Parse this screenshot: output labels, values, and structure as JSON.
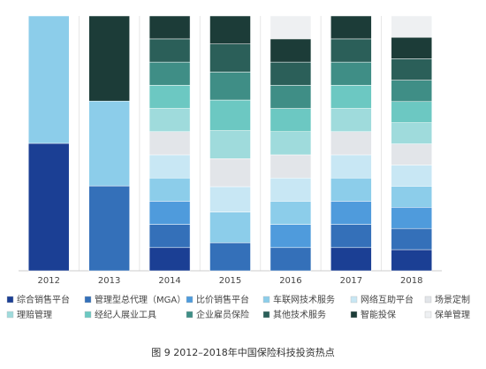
{
  "chart_data": {
    "type": "stacked_bar",
    "caption": "图 9  2012–2018年中国保险科技投资热点",
    "categories": [
      "2012",
      "2013",
      "2014",
      "2015",
      "2016",
      "2017",
      "2018"
    ],
    "ylim": [
      0,
      100
    ],
    "series": [
      {
        "name": "综合销售平台",
        "color": "#1b3f94",
        "values": [
          50,
          null,
          9.1,
          null,
          null,
          9.1,
          8.3
        ]
      },
      {
        "name": "管理型总代理（MGA）",
        "color": "#3470b9",
        "values": [
          null,
          33.3,
          9.1,
          11,
          9.1,
          9.1,
          8.3
        ]
      },
      {
        "name": "比价销售平台",
        "color": "#4f9bdc",
        "values": [
          null,
          null,
          9.1,
          null,
          9.1,
          9.1,
          8.3
        ]
      },
      {
        "name": "车联网技术服务",
        "color": "#8ccdea",
        "values": [
          50,
          33.3,
          9.1,
          12,
          9.1,
          9.1,
          8.3
        ]
      },
      {
        "name": "网络互助平台",
        "color": "#c8e7f4",
        "values": [
          null,
          null,
          9.1,
          10,
          9.1,
          9.1,
          8.3
        ]
      },
      {
        "name": "场景定制",
        "color": "#e2e5e9",
        "values": [
          null,
          null,
          9.1,
          11,
          9.1,
          9.1,
          8.3
        ]
      },
      {
        "name": "理赔管理",
        "color": "#9fdbdc",
        "values": [
          null,
          null,
          9.1,
          11,
          9.1,
          9.1,
          8.3
        ]
      },
      {
        "name": "经纪人展业工具",
        "color": "#6cc8c2",
        "values": [
          null,
          null,
          9.1,
          12,
          9.1,
          9.1,
          8.3
        ]
      },
      {
        "name": "企业雇员保险",
        "color": "#3f8e86",
        "values": [
          null,
          null,
          9.1,
          11,
          9.1,
          9.1,
          8.4
        ]
      },
      {
        "name": "其他技术服务",
        "color": "#2b5f59",
        "values": [
          null,
          null,
          9.1,
          11,
          9.1,
          9.1,
          8.4
        ]
      },
      {
        "name": "智能投保",
        "color": "#1c3c38",
        "values": [
          null,
          33.4,
          9,
          11,
          9.1,
          9,
          8.4
        ]
      },
      {
        "name": "保单管理",
        "color": "#eef0f2",
        "values": [
          null,
          null,
          null,
          null,
          9,
          null,
          8.4
        ]
      }
    ]
  }
}
